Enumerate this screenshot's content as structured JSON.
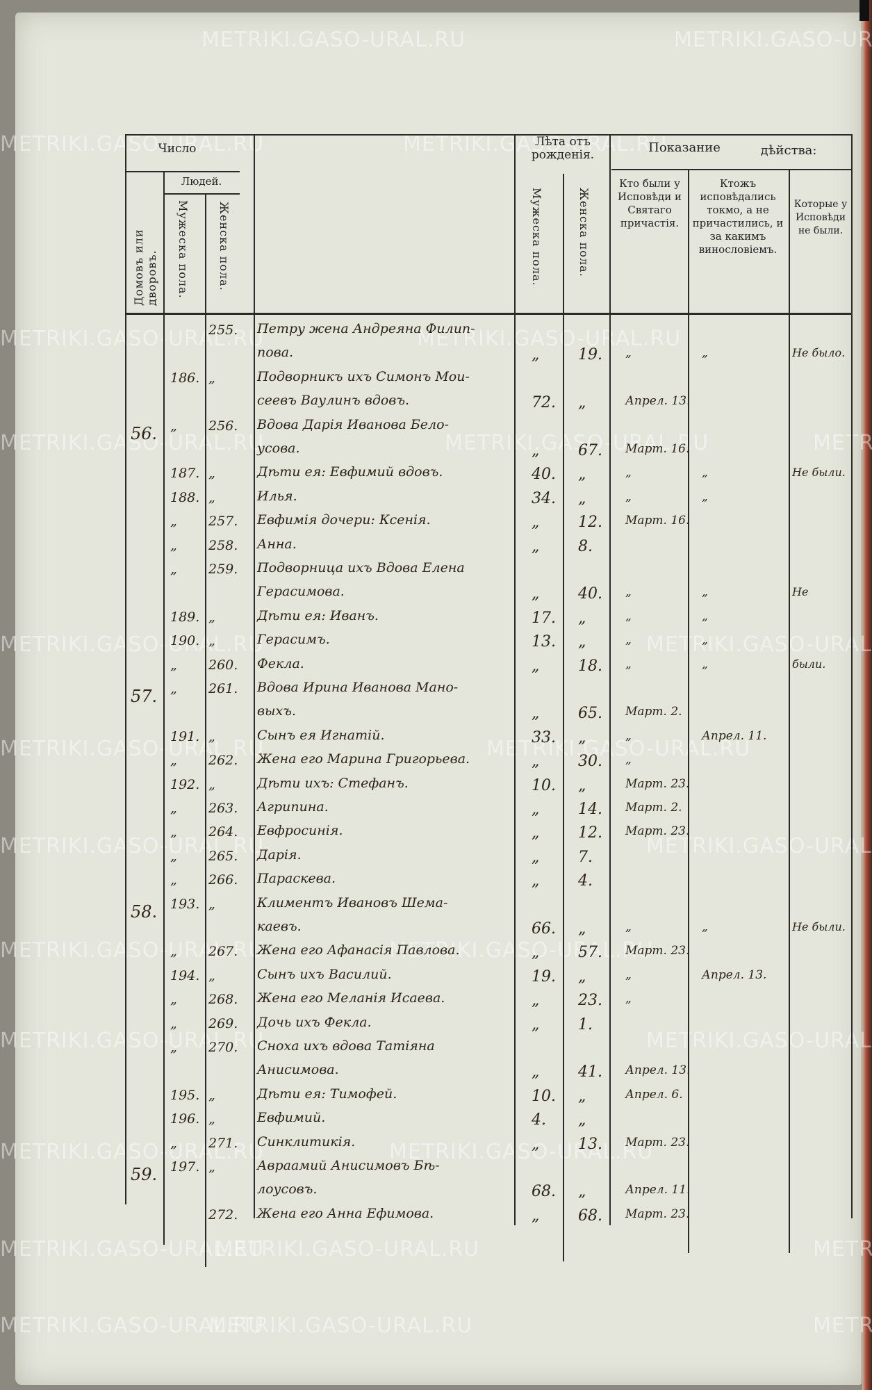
{
  "watermark": "METRIKI.GASO-URAL.RU",
  "header": {
    "chislo": "Число",
    "lyudey": "Людей.",
    "houses": "Домовъ или дворовъ.",
    "male": "Мужеска пола.",
    "female": "Женска пола.",
    "age_group": "Лѣта отъ рожденія.",
    "age_male": "Мужеска пола.",
    "age_female": "Женска пола.",
    "show": "Показание",
    "action": "дѣйства:",
    "col_confessed": "Кто были у Исповѣди и Святаго причастія.",
    "col_confessed_only": "Ктожъ исповѣдались токмо, а не причастились, и за какимъ винословіемъ.",
    "col_not": "Которые у Исповѣди не были."
  },
  "entries": [
    {
      "house": "",
      "m": "",
      "f": "255.",
      "name": [
        "Петру жена Андреяна Филип-",
        "пова."
      ],
      "am": "„",
      "af": "19.",
      "c1": "„",
      "c2": "„",
      "c3": "Не было."
    },
    {
      "house": "",
      "m": "186.",
      "f": "„",
      "name": [
        "Подворникъ ихъ Симонъ Мои-",
        "сеевъ Ваулинъ вдовъ."
      ],
      "am": "72.",
      "af": "„",
      "c1": "Апрел. 13.",
      "c2": "",
      "c3": ""
    },
    {
      "house": "56.",
      "m": "„",
      "f": "256.",
      "name": [
        "Вдова Дарія Иванова Бело-",
        "усова."
      ],
      "am": "„",
      "af": "67.",
      "c1": "Март. 16.",
      "c2": "",
      "c3": ""
    },
    {
      "house": "",
      "m": "187.",
      "f": "„",
      "name": [
        "Дѣти ея: Евфимий вдовъ."
      ],
      "am": "40.",
      "af": "„",
      "c1": "„",
      "c2": "„",
      "c3": "Не были."
    },
    {
      "house": "",
      "m": "188.",
      "f": "„",
      "name": [
        "Илья."
      ],
      "am": "34.",
      "af": "„",
      "c1": "„",
      "c2": "„",
      "c3": ""
    },
    {
      "house": "",
      "m": "„",
      "f": "257.",
      "name": [
        "Евфимія дочери: Ксенія."
      ],
      "am": "„",
      "af": "12.",
      "c1": "Март. 16.",
      "c2": "",
      "c3": ""
    },
    {
      "house": "",
      "m": "„",
      "f": "258.",
      "name": [
        "Анна."
      ],
      "am": "„",
      "af": "8.",
      "c1": "",
      "c2": "",
      "c3": ""
    },
    {
      "house": "",
      "m": "„",
      "f": "259.",
      "name": [
        "Подворница ихъ Вдова Елена",
        "Герасимова."
      ],
      "am": "„",
      "af": "40.",
      "c1": "„",
      "c2": "„",
      "c3": "Не"
    },
    {
      "house": "",
      "m": "189.",
      "f": "„",
      "name": [
        "Дѣти ея: Иванъ."
      ],
      "am": "17.",
      "af": "„",
      "c1": "„",
      "c2": "„",
      "c3": ""
    },
    {
      "house": "",
      "m": "190.",
      "f": "„",
      "name": [
        "Герасимъ."
      ],
      "am": "13.",
      "af": "„",
      "c1": "„",
      "c2": "„",
      "c3": ""
    },
    {
      "house": "",
      "m": "„",
      "f": "260.",
      "name": [
        "Фекла."
      ],
      "am": "„",
      "af": "18.",
      "c1": "„",
      "c2": "„",
      "c3": "были."
    },
    {
      "house": "57.",
      "m": "„",
      "f": "261.",
      "name": [
        "Вдова Ирина Иванова Мано-",
        "выхъ."
      ],
      "am": "„",
      "af": "65.",
      "c1": "Март. 2.",
      "c2": "",
      "c3": ""
    },
    {
      "house": "",
      "m": "191.",
      "f": "„",
      "name": [
        "Сынъ ея Игнатій."
      ],
      "am": "33.",
      "af": "„",
      "c1": "„",
      "c2": "Апрел. 11.",
      "c3": ""
    },
    {
      "house": "",
      "m": "„",
      "f": "262.",
      "name": [
        "Жена его Марина Григорьева."
      ],
      "am": "„",
      "af": "30.",
      "c1": "„",
      "c2": "",
      "c3": ""
    },
    {
      "house": "",
      "m": "192.",
      "f": "„",
      "name": [
        "Дѣти ихъ: Стефанъ."
      ],
      "am": "10.",
      "af": "„",
      "c1": "Март. 23.",
      "c2": "",
      "c3": ""
    },
    {
      "house": "",
      "m": "„",
      "f": "263.",
      "name": [
        "Агрипина."
      ],
      "am": "„",
      "af": "14.",
      "c1": "Март. 2.",
      "c2": "",
      "c3": ""
    },
    {
      "house": "",
      "m": "„",
      "f": "264.",
      "name": [
        "Евфросинія."
      ],
      "am": "„",
      "af": "12.",
      "c1": "Март. 23.",
      "c2": "",
      "c3": ""
    },
    {
      "house": "",
      "m": "„",
      "f": "265.",
      "name": [
        "Дарія."
      ],
      "am": "„",
      "af": "7.",
      "c1": "",
      "c2": "",
      "c3": ""
    },
    {
      "house": "",
      "m": "„",
      "f": "266.",
      "name": [
        "Параскева."
      ],
      "am": "„",
      "af": "4.",
      "c1": "",
      "c2": "",
      "c3": ""
    },
    {
      "house": "58.",
      "m": "193.",
      "f": "„",
      "name": [
        "Климентъ Ивановъ Шема-",
        "каевъ."
      ],
      "am": "66.",
      "af": "„",
      "c1": "„",
      "c2": "„",
      "c3": "Не были."
    },
    {
      "house": "",
      "m": "„",
      "f": "267.",
      "name": [
        "Жена его Афанасія Павлова."
      ],
      "am": "„",
      "af": "57.",
      "c1": "Март. 23.",
      "c2": "",
      "c3": ""
    },
    {
      "house": "",
      "m": "194.",
      "f": "„",
      "name": [
        "Сынъ ихъ Василий."
      ],
      "am": "19.",
      "af": "„",
      "c1": "„",
      "c2": "Апрел. 13.",
      "c3": ""
    },
    {
      "house": "",
      "m": "„",
      "f": "268.",
      "name": [
        "Жена его Меланія Исаева."
      ],
      "am": "„",
      "af": "23.",
      "c1": "„",
      "c2": "",
      "c3": ""
    },
    {
      "house": "",
      "m": "„",
      "f": "269.",
      "name": [
        "Дочь ихъ Фекла."
      ],
      "am": "„",
      "af": "1.",
      "c1": "",
      "c2": "",
      "c3": ""
    },
    {
      "house": "",
      "m": "„",
      "f": "270.",
      "name": [
        "Сноха ихъ вдова Татіяна",
        "Анисимова."
      ],
      "am": "„",
      "af": "41.",
      "c1": "Апрел. 13.",
      "c2": "",
      "c3": ""
    },
    {
      "house": "",
      "m": "195.",
      "f": "„",
      "name": [
        "Дѣти ея: Тимофей."
      ],
      "am": "10.",
      "af": "„",
      "c1": "Апрел. 6.",
      "c2": "",
      "c3": ""
    },
    {
      "house": "",
      "m": "196.",
      "f": "„",
      "name": [
        "Евфимий."
      ],
      "am": "4.",
      "af": "„",
      "c1": "",
      "c2": "",
      "c3": ""
    },
    {
      "house": "",
      "m": "„",
      "f": "271.",
      "name": [
        "Синклитикія."
      ],
      "am": "„",
      "af": "13.",
      "c1": "Март. 23.",
      "c2": "",
      "c3": ""
    },
    {
      "house": "59.",
      "m": "197.",
      "f": "„",
      "name": [
        "Авраамий Анисимовъ Бѣ-",
        "лоусовъ."
      ],
      "am": "68.",
      "af": "„",
      "c1": "Апрел. 11.",
      "c2": "",
      "c3": ""
    },
    {
      "house": "",
      "m": "",
      "f": "272.",
      "name": [
        "Жена его Анна Ефимова."
      ],
      "am": "„",
      "af": "68.",
      "c1": "Март. 23.",
      "c2": "",
      "c3": ""
    }
  ]
}
